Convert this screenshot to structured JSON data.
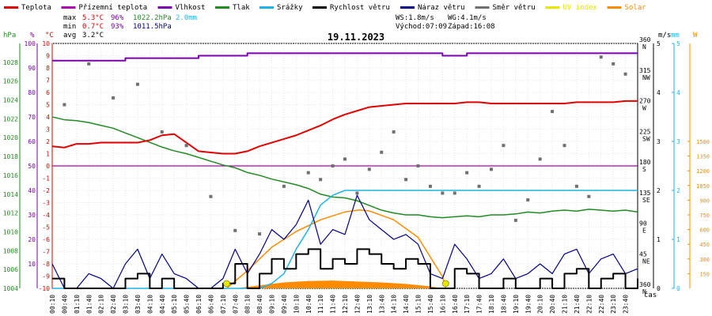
{
  "chart_data": {
    "type": "line",
    "title": "19.11.2023",
    "legend": [
      {
        "name": "Teplota",
        "color": "#e00000"
      },
      {
        "name": "Přízemní teplota",
        "color": "#b000b0"
      },
      {
        "name": "Vlhkost",
        "color": "#7a00b0"
      },
      {
        "name": "Tlak",
        "color": "#228b22"
      },
      {
        "name": "Srážky",
        "color": "#1eb4e6"
      },
      {
        "name": "Rychlost větru",
        "color": "#000000"
      },
      {
        "name": "Náraz větru",
        "color": "#00008b"
      },
      {
        "name": "Směr větru",
        "color": "#707070"
      },
      {
        "name": "UV index",
        "color": "#e6e600"
      },
      {
        "name": "Solar",
        "color": "#ff8c00"
      }
    ],
    "stats": {
      "max_label": "max",
      "min_label": "min",
      "avg_label": "avg",
      "temp_max": "5.3°C",
      "hum_max": "96%",
      "press_max": "1022.2hPa",
      "rain": "2.0mm",
      "temp_min": "0.7°C",
      "hum_min": "93%",
      "press_min": "1011.5hPa",
      "temp_avg": "3.2°C",
      "ws": "WS:1.8m/s",
      "wg": "WG:4.1m/s",
      "sunrise": "Východ:07:09",
      "sunset": "Západ:16:08"
    },
    "axes": {
      "hpa": {
        "title": "hPa",
        "range": [
          1004,
          1030
        ],
        "ticks": [
          1004,
          1006,
          1008,
          1010,
          1012,
          1014,
          1016,
          1018,
          1020,
          1022,
          1024,
          1026,
          1028
        ]
      },
      "humidity": {
        "title": "%",
        "range": [
          0,
          100
        ],
        "ticks": [
          10,
          20,
          30,
          40,
          50,
          60,
          70,
          80,
          90,
          100
        ]
      },
      "temperature": {
        "title": "°C",
        "range": [
          -10,
          10
        ],
        "ticks": [
          10,
          9,
          8,
          7,
          6,
          5,
          4,
          3,
          2,
          1,
          0,
          -1,
          -2,
          -3,
          -4,
          -5,
          -6,
          -7,
          -8,
          -9,
          -10
        ]
      },
      "wind_ms": {
        "title": "m/s",
        "range": [
          0,
          5
        ],
        "ticks": [
          0,
          1,
          2,
          3,
          4,
          5
        ]
      },
      "direction": {
        "ticks": [
          {
            "value": 0,
            "label": "N",
            "deg": "360"
          },
          {
            "value": 45,
            "label": "NE",
            "deg": "45"
          },
          {
            "value": 90,
            "label": "E",
            "deg": "90"
          },
          {
            "value": 135,
            "label": "SE",
            "deg": "135"
          },
          {
            "value": 180,
            "label": "S",
            "deg": "180"
          },
          {
            "value": 225,
            "label": "SW",
            "deg": "225"
          },
          {
            "value": 270,
            "label": "W",
            "deg": "270"
          },
          {
            "value": 315,
            "label": "NW",
            "deg": "315"
          },
          {
            "value": 360,
            "label": "N",
            "deg": "360"
          }
        ]
      },
      "rain_mm": {
        "title": "mm",
        "range": [
          0,
          5
        ],
        "ticks": [
          0,
          1,
          2,
          3,
          4,
          5
        ]
      },
      "solar_w": {
        "title": "W",
        "range": [
          0,
          2500
        ],
        "ticks": [
          150,
          300,
          450,
          600,
          750,
          900,
          1050,
          1200,
          1350,
          1500
        ]
      },
      "xlabel": "čas",
      "time_ticks": [
        "00:10",
        "00:40",
        "01:10",
        "01:40",
        "02:10",
        "02:40",
        "03:10",
        "03:40",
        "04:10",
        "04:40",
        "05:10",
        "05:40",
        "06:10",
        "06:40",
        "07:10",
        "07:40",
        "08:10",
        "08:40",
        "09:10",
        "09:40",
        "10:10",
        "10:40",
        "11:10",
        "11:40",
        "12:10",
        "12:40",
        "13:10",
        "13:40",
        "14:10",
        "14:40",
        "15:10",
        "15:40",
        "16:10",
        "16:40",
        "17:10",
        "17:40",
        "18:10",
        "18:40",
        "19:10",
        "19:40",
        "20:10",
        "20:40",
        "21:10",
        "21:40",
        "22:10",
        "22:40",
        "23:10",
        "23:40"
      ]
    },
    "series": {
      "temperature": {
        "x": [
          0,
          0.5,
          1,
          1.5,
          2,
          2.5,
          3,
          3.5,
          4,
          4.5,
          5,
          5.5,
          6,
          6.5,
          7,
          7.5,
          8,
          8.5,
          9,
          9.5,
          10,
          10.5,
          11,
          11.5,
          12,
          12.5,
          13,
          13.5,
          14,
          14.5,
          15,
          15.5,
          16,
          16.5,
          17,
          17.5,
          18,
          18.5,
          19,
          19.5,
          20,
          20.5,
          21,
          21.5,
          22,
          22.5,
          23,
          23.5,
          24
        ],
        "y": [
          1.6,
          1.5,
          1.8,
          1.8,
          1.9,
          1.9,
          1.9,
          1.9,
          2.1,
          2.5,
          2.6,
          1.9,
          1.2,
          1.1,
          1.0,
          1.0,
          1.2,
          1.6,
          1.9,
          2.2,
          2.5,
          2.9,
          3.3,
          3.8,
          4.2,
          4.5,
          4.8,
          4.9,
          5.0,
          5.1,
          5.1,
          5.1,
          5.1,
          5.1,
          5.2,
          5.2,
          5.1,
          5.1,
          5.1,
          5.1,
          5.1,
          5.1,
          5.1,
          5.2,
          5.2,
          5.2,
          5.2,
          5.3,
          5.3
        ]
      },
      "ground_temperature": {
        "x": [
          0,
          24
        ],
        "y": [
          0,
          0
        ]
      },
      "humidity": {
        "x": [
          0,
          2,
          3,
          5,
          6,
          7,
          8,
          9,
          10,
          12,
          14,
          15,
          16,
          17,
          18,
          20,
          22,
          24
        ],
        "y": [
          93,
          93,
          94,
          94,
          95,
          95,
          96,
          96,
          96,
          96,
          96,
          96,
          95,
          96,
          96,
          96,
          96,
          96
        ]
      },
      "pressure": {
        "x": [
          0,
          0.5,
          1,
          1.5,
          2,
          2.5,
          3,
          3.5,
          4,
          4.5,
          5,
          5.5,
          6,
          6.5,
          7,
          7.5,
          8,
          8.5,
          9,
          9.5,
          10,
          10.5,
          11,
          11.5,
          12,
          12.5,
          13,
          13.5,
          14,
          14.5,
          15,
          15.5,
          16,
          16.5,
          17,
          17.5,
          18,
          18.5,
          19,
          19.5,
          20,
          20.5,
          21,
          21.5,
          22,
          22.5,
          23,
          23.5,
          24
        ],
        "y": [
          1022.2,
          1021.9,
          1021.8,
          1021.6,
          1021.3,
          1021.0,
          1020.5,
          1020.0,
          1019.5,
          1019.0,
          1018.6,
          1018.3,
          1017.9,
          1017.5,
          1017.1,
          1016.8,
          1016.3,
          1016.0,
          1015.6,
          1015.3,
          1015.0,
          1014.6,
          1014.0,
          1013.7,
          1013.6,
          1013.3,
          1012.8,
          1012.3,
          1012.0,
          1011.8,
          1011.8,
          1011.6,
          1011.5,
          1011.6,
          1011.7,
          1011.6,
          1011.8,
          1011.8,
          1011.9,
          1012.1,
          1012.0,
          1012.2,
          1012.3,
          1012.2,
          1012.4,
          1012.3,
          1012.2,
          1012.3,
          1012.1
        ]
      },
      "rain_cumulative": {
        "x": [
          0,
          7.5,
          8,
          8.5,
          9,
          9.5,
          10,
          10.5,
          11,
          11.5,
          12,
          12.5,
          13,
          14,
          16,
          18,
          20,
          22,
          24
        ],
        "y": [
          0,
          0,
          0,
          0,
          0.1,
          0.3,
          0.8,
          1.2,
          1.7,
          1.9,
          2.0,
          2.0,
          2.0,
          2.0,
          2.0,
          2.0,
          2.0,
          2.0,
          2.0
        ]
      },
      "wind_speed": {
        "x": [
          0,
          0.5,
          1,
          1.5,
          2,
          2.5,
          3,
          3.5,
          4,
          4.5,
          5,
          5.5,
          6,
          6.5,
          7,
          7.5,
          8,
          8.5,
          9,
          9.5,
          10,
          10.5,
          11,
          11.5,
          12,
          12.5,
          13,
          13.5,
          14,
          14.5,
          15,
          15.5,
          16,
          16.5,
          17,
          17.5,
          18,
          18.5,
          19,
          19.5,
          20,
          20.5,
          21,
          21.5,
          22,
          22.5,
          23,
          23.5,
          24
        ],
        "y": [
          0.2,
          0,
          0,
          0,
          0,
          0,
          0.2,
          0.3,
          0,
          0.2,
          0,
          0,
          0,
          0,
          0.1,
          0.5,
          0,
          0.3,
          0.6,
          0.4,
          0.7,
          0.8,
          0.4,
          0.6,
          0.5,
          0.8,
          0.7,
          0.5,
          0.4,
          0.6,
          0.5,
          0,
          0,
          0.4,
          0.3,
          0,
          0,
          0.2,
          0,
          0,
          0.2,
          0,
          0.3,
          0.4,
          0,
          0.2,
          0.3,
          0,
          0.2
        ]
      },
      "wind_gust": {
        "x": [
          0,
          0.5,
          1,
          1.5,
          2,
          2.5,
          3,
          3.5,
          4,
          4.5,
          5,
          5.5,
          6,
          6.5,
          7,
          7.5,
          8,
          8.5,
          9,
          9.5,
          10,
          10.5,
          11,
          11.5,
          12,
          12.5,
          13,
          13.5,
          14,
          14.5,
          15,
          15.5,
          16,
          16.5,
          17,
          17.5,
          18,
          18.5,
          19,
          19.5,
          20,
          20.5,
          21,
          21.5,
          22,
          22.5,
          23,
          23.5,
          24
        ],
        "y": [
          0.5,
          0,
          0,
          0.3,
          0.2,
          0,
          0.5,
          0.8,
          0.2,
          0.7,
          0.3,
          0.2,
          0,
          0,
          0.2,
          0.8,
          0.3,
          0.7,
          1.2,
          1.0,
          1.3,
          1.8,
          0.9,
          1.2,
          1.1,
          1.9,
          1.4,
          1.2,
          1.0,
          1.1,
          0.9,
          0.3,
          0.2,
          0.9,
          0.6,
          0.2,
          0.3,
          0.6,
          0.2,
          0.3,
          0.5,
          0.3,
          0.7,
          0.8,
          0.3,
          0.6,
          0.7,
          0.3,
          0.4
        ]
      },
      "wind_direction": {
        "x": [
          0.5,
          1.5,
          2.5,
          3.5,
          4.5,
          5.5,
          6.5,
          7.5,
          8.5,
          9.5,
          10.5,
          11,
          11.5,
          12,
          12.5,
          13,
          13.5,
          14,
          14.5,
          15,
          15.5,
          16,
          16.5,
          17,
          17.5,
          18,
          18.5,
          19,
          19.5,
          20,
          20.5,
          21,
          21.5,
          22,
          22.5,
          23,
          23.5
        ],
        "y": [
          270,
          330,
          280,
          300,
          230,
          210,
          135,
          85,
          80,
          150,
          170,
          160,
          180,
          190,
          140,
          175,
          200,
          230,
          160,
          180,
          150,
          140,
          140,
          170,
          150,
          175,
          210,
          100,
          130,
          190,
          260,
          210,
          150,
          135,
          340,
          330,
          315
        ]
      },
      "solar": {
        "x": [
          7.5,
          8.5,
          9.5,
          10.5,
          11.5,
          12.5,
          13.5,
          14.5,
          15.5,
          16
        ],
        "y": [
          0,
          30,
          60,
          75,
          80,
          70,
          60,
          45,
          20,
          0
        ]
      },
      "solar_theoretical": {
        "x": [
          7.15,
          8,
          9,
          10,
          11,
          12,
          12.6,
          13,
          14,
          15,
          16,
          16.13
        ],
        "y": [
          0,
          180,
          420,
          580,
          700,
          780,
          800,
          790,
          700,
          520,
          120,
          0
        ]
      },
      "uv_index": {
        "x": [
          7.15,
          16.13
        ],
        "y": [
          0,
          0
        ]
      }
    }
  }
}
